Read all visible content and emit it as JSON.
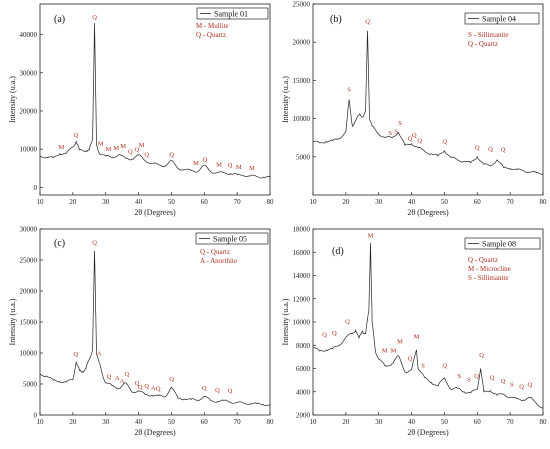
{
  "figure": {
    "xlabel": "2θ (Degrees)",
    "ylabel": "Intensity (u.a.)"
  },
  "chart_data": [
    {
      "type": "line",
      "panel": "(a)",
      "series": [
        {
          "name": "Sample 01",
          "x": [
            10,
            12,
            14,
            16,
            18,
            20,
            21,
            22,
            24,
            25,
            26,
            26.6,
            27.2,
            28,
            30,
            32,
            34,
            36,
            38,
            40,
            42,
            44,
            46,
            48,
            50,
            52,
            54,
            56,
            58,
            60,
            62,
            64,
            66,
            68,
            70,
            72,
            74,
            76,
            78,
            80
          ],
          "values": [
            8200,
            7900,
            7700,
            8800,
            8900,
            10600,
            12000,
            9800,
            9600,
            9800,
            12500,
            43000,
            11000,
            9000,
            8200,
            7800,
            8600,
            7600,
            7400,
            8500,
            7000,
            6300,
            5900,
            5600,
            7000,
            5000,
            4600,
            4400,
            4200,
            5800,
            4100,
            3800,
            3800,
            3600,
            3300,
            3100,
            3000,
            2800,
            2700,
            2600
          ]
        }
      ],
      "xlim": [
        10,
        80
      ],
      "ylim": [
        -2000,
        48000
      ],
      "yticks": [
        0,
        10000,
        20000,
        30000,
        40000
      ],
      "xticks": [
        10,
        20,
        30,
        40,
        50,
        60,
        70,
        80
      ],
      "key": [
        "M - Mullite",
        "Q - Quartz"
      ],
      "annotations": [
        {
          "x": 16.5,
          "y": 9500,
          "t": "M"
        },
        {
          "x": 20.9,
          "y": 12600,
          "t": "Q"
        },
        {
          "x": 26.6,
          "y": 43500,
          "t": "Q"
        },
        {
          "x": 28.5,
          "y": 10500,
          "t": "M"
        },
        {
          "x": 30.8,
          "y": 9000,
          "t": "M"
        },
        {
          "x": 33.2,
          "y": 9200,
          "t": "M"
        },
        {
          "x": 35.3,
          "y": 9800,
          "t": "M"
        },
        {
          "x": 37.5,
          "y": 8300,
          "t": "Q"
        },
        {
          "x": 39.5,
          "y": 8800,
          "t": "Q"
        },
        {
          "x": 40.9,
          "y": 10000,
          "t": "M"
        },
        {
          "x": 42.5,
          "y": 7600,
          "t": "Q"
        },
        {
          "x": 50.1,
          "y": 7600,
          "t": "Q"
        },
        {
          "x": 57.5,
          "y": 5300,
          "t": "M"
        },
        {
          "x": 60.2,
          "y": 6300,
          "t": "Q"
        },
        {
          "x": 64.5,
          "y": 5000,
          "t": "M"
        },
        {
          "x": 67.8,
          "y": 4800,
          "t": "Q"
        },
        {
          "x": 70.5,
          "y": 4300,
          "t": "M"
        },
        {
          "x": 74.5,
          "y": 4000,
          "t": "M"
        }
      ]
    },
    {
      "type": "line",
      "panel": "(b)",
      "series": [
        {
          "name": "Sample 04",
          "x": [
            10,
            12,
            14,
            16,
            18,
            20,
            21,
            22,
            24,
            25,
            26,
            26.6,
            27.2,
            28,
            30,
            32,
            34,
            36,
            38,
            40,
            42,
            44,
            46,
            48,
            50,
            52,
            54,
            56,
            58,
            60,
            62,
            64,
            66,
            68,
            70,
            72,
            74,
            76,
            78,
            80
          ],
          "values": [
            7000,
            6800,
            7000,
            7100,
            7400,
            8300,
            12500,
            9000,
            10500,
            10200,
            11000,
            21500,
            10000,
            9000,
            8000,
            7500,
            7500,
            8200,
            6500,
            6700,
            6200,
            5700,
            5400,
            5100,
            5800,
            4900,
            4600,
            4400,
            4200,
            5000,
            4000,
            3800,
            4600,
            3600,
            3500,
            3300,
            3200,
            3000,
            2900,
            2800
          ]
        }
      ],
      "xlim": [
        10,
        80
      ],
      "ylim": [
        0,
        25000
      ],
      "yticks": [
        5000,
        10000,
        15000,
        20000,
        25000
      ],
      "xticks": [
        10,
        20,
        30,
        40,
        50,
        60,
        70,
        80
      ],
      "key": [
        "S - Sillimanite",
        "Q - Quartz"
      ],
      "annotations": [
        {
          "x": 21.0,
          "y": 13300,
          "t": "S"
        },
        {
          "x": 26.6,
          "y": 22200,
          "t": "Q"
        },
        {
          "x": 33.5,
          "y": 7600,
          "t": "S"
        },
        {
          "x": 35.3,
          "y": 7800,
          "t": "S"
        },
        {
          "x": 36.5,
          "y": 8900,
          "t": "S"
        },
        {
          "x": 39.5,
          "y": 6900,
          "t": "Q"
        },
        {
          "x": 40.8,
          "y": 7300,
          "t": "Q"
        },
        {
          "x": 42.5,
          "y": 6600,
          "t": "Q"
        },
        {
          "x": 50.1,
          "y": 6500,
          "t": "Q"
        },
        {
          "x": 60.0,
          "y": 5700,
          "t": "Q"
        },
        {
          "x": 64.0,
          "y": 5500,
          "t": "Q"
        },
        {
          "x": 67.8,
          "y": 5400,
          "t": "Q"
        }
      ]
    },
    {
      "type": "line",
      "panel": "(c)",
      "series": [
        {
          "name": "Sample 05",
          "x": [
            10,
            12,
            14,
            16,
            18,
            20,
            21,
            22,
            23,
            24,
            25,
            26,
            26.6,
            27.2,
            28,
            29,
            30,
            32,
            34,
            36,
            38,
            40,
            42,
            44,
            46,
            48,
            50,
            52,
            54,
            56,
            58,
            60,
            62,
            64,
            66,
            68,
            70,
            72,
            74,
            76,
            78,
            80
          ],
          "values": [
            6600,
            6300,
            5600,
            5400,
            5300,
            5700,
            8500,
            7200,
            7000,
            7500,
            9000,
            10500,
            26500,
            10000,
            8500,
            6500,
            5200,
            4700,
            4300,
            5200,
            3700,
            3900,
            3300,
            3200,
            3100,
            2900,
            4500,
            2700,
            2600,
            2500,
            2400,
            3000,
            2300,
            2200,
            2300,
            2100,
            2000,
            1900,
            1850,
            1800,
            1700,
            1600
          ]
        }
      ],
      "xlim": [
        10,
        80
      ],
      "ylim": [
        0,
        30000
      ],
      "yticks": [
        0,
        5000,
        10000,
        15000,
        20000,
        25000,
        30000
      ],
      "xticks": [
        10,
        20,
        30,
        40,
        50,
        60,
        70,
        80
      ],
      "key": [
        "Q - Quartz",
        "A - Anorthite"
      ],
      "annotations": [
        {
          "x": 20.9,
          "y": 9200,
          "t": "Q"
        },
        {
          "x": 26.6,
          "y": 27200,
          "t": "Q"
        },
        {
          "x": 28.0,
          "y": 9300,
          "t": "A"
        },
        {
          "x": 31.0,
          "y": 5600,
          "t": "Q"
        },
        {
          "x": 33.5,
          "y": 5300,
          "t": "A"
        },
        {
          "x": 35.0,
          "y": 4800,
          "t": "A"
        },
        {
          "x": 36.5,
          "y": 6000,
          "t": "Q"
        },
        {
          "x": 39.5,
          "y": 4500,
          "t": "Q"
        },
        {
          "x": 40.5,
          "y": 3900,
          "t": "Q"
        },
        {
          "x": 42.5,
          "y": 4000,
          "t": "Q"
        },
        {
          "x": 44.5,
          "y": 3700,
          "t": "A"
        },
        {
          "x": 46.0,
          "y": 3600,
          "t": "Q"
        },
        {
          "x": 50.1,
          "y": 5200,
          "t": "Q"
        },
        {
          "x": 60.0,
          "y": 3700,
          "t": "Q"
        },
        {
          "x": 64.0,
          "y": 3400,
          "t": "Q"
        },
        {
          "x": 67.8,
          "y": 3300,
          "t": "Q"
        }
      ]
    },
    {
      "type": "line",
      "panel": "(d)",
      "series": [
        {
          "name": "Sample 08",
          "x": [
            10,
            12,
            14,
            16,
            18,
            20,
            22,
            23,
            24,
            25,
            26,
            27,
            27.5,
            28,
            29,
            30,
            32,
            34,
            36,
            38,
            40,
            41.5,
            42,
            44,
            46,
            48,
            50,
            52,
            54,
            56,
            58,
            60,
            61,
            62,
            64,
            66,
            68,
            70,
            72,
            74,
            76,
            78,
            80
          ],
          "values": [
            7800,
            7500,
            7600,
            7700,
            8000,
            8700,
            9000,
            9300,
            8600,
            9200,
            9000,
            11000,
            16800,
            10000,
            7500,
            6800,
            6200,
            6400,
            7100,
            5700,
            5900,
            7600,
            6000,
            5200,
            4800,
            4500,
            5200,
            4200,
            4300,
            4000,
            3900,
            4200,
            6000,
            4000,
            4100,
            3700,
            3800,
            3500,
            3400,
            3300,
            3500,
            3000,
            2600
          ]
        }
      ],
      "xlim": [
        10,
        80
      ],
      "ylim": [
        2000,
        18000
      ],
      "yticks": [
        2000,
        4000,
        6000,
        8000,
        10000,
        12000,
        14000,
        16000,
        18000
      ],
      "xticks": [
        10,
        20,
        30,
        40,
        50,
        60,
        70,
        80
      ],
      "key": [
        "Q - Quartz",
        "M - Microcline",
        "S - Sillimanite"
      ],
      "annotations": [
        {
          "x": 13.5,
          "y": 8600,
          "t": "Q"
        },
        {
          "x": 16.5,
          "y": 8700,
          "t": "Q"
        },
        {
          "x": 20.5,
          "y": 9700,
          "t": "Q"
        },
        {
          "x": 27.5,
          "y": 17100,
          "t": "M"
        },
        {
          "x": 31.8,
          "y": 7200,
          "t": "M"
        },
        {
          "x": 34.5,
          "y": 7200,
          "t": "M"
        },
        {
          "x": 36.5,
          "y": 8000,
          "t": "M"
        },
        {
          "x": 39.5,
          "y": 6500,
          "t": "Q"
        },
        {
          "x": 41.5,
          "y": 8400,
          "t": "M"
        },
        {
          "x": 43.5,
          "y": 5900,
          "t": "S"
        },
        {
          "x": 50.1,
          "y": 5900,
          "t": "Q"
        },
        {
          "x": 54.5,
          "y": 5000,
          "t": "S"
        },
        {
          "x": 57.5,
          "y": 4700,
          "t": "S"
        },
        {
          "x": 59.8,
          "y": 5000,
          "t": "Q"
        },
        {
          "x": 61.3,
          "y": 6800,
          "t": "Q"
        },
        {
          "x": 64.5,
          "y": 4900,
          "t": "Q"
        },
        {
          "x": 67.8,
          "y": 4600,
          "t": "Q"
        },
        {
          "x": 70.5,
          "y": 4300,
          "t": "S"
        },
        {
          "x": 73.5,
          "y": 4100,
          "t": "Q"
        },
        {
          "x": 76.0,
          "y": 4300,
          "t": "Q"
        }
      ]
    }
  ]
}
